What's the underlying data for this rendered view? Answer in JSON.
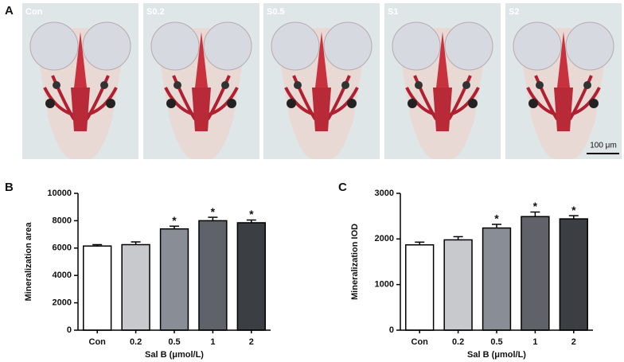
{
  "panel_a": {
    "label": "A",
    "images": [
      "Con",
      "S0.2",
      "S0.5",
      "S1",
      "S2"
    ],
    "scale_bar": "100 μm"
  },
  "chart_data": [
    {
      "type": "bar",
      "panel_label": "B",
      "y_label": "Mineralization area",
      "x_label": "Sal B (μmol/L)",
      "categories": [
        "Con",
        "0.2",
        "0.5",
        "1",
        "2"
      ],
      "values": [
        6150,
        6250,
        7400,
        8000,
        7850
      ],
      "errors": [
        100,
        200,
        200,
        250,
        200
      ],
      "significance": [
        null,
        null,
        "*",
        "*",
        "*"
      ],
      "colors": [
        "#ffffff",
        "#c8c9cd",
        "#898d95",
        "#5f6369",
        "#3b3e43"
      ],
      "ylim": [
        0,
        10000
      ],
      "yticks": [
        0,
        2000,
        4000,
        6000,
        8000,
        10000
      ]
    },
    {
      "type": "bar",
      "panel_label": "C",
      "y_label": "Mineralization IOD",
      "x_label": "Sal B (μmol/L)",
      "categories": [
        "Con",
        "0.2",
        "0.5",
        "1",
        "2"
      ],
      "values": [
        1870,
        1980,
        2240,
        2490,
        2440
      ],
      "errors": [
        60,
        70,
        80,
        100,
        70
      ],
      "significance": [
        null,
        null,
        "*",
        "*",
        "*"
      ],
      "colors": [
        "#ffffff",
        "#c8c9cd",
        "#898d95",
        "#5f6369",
        "#3b3e43"
      ],
      "ylim": [
        0,
        3000
      ],
      "yticks": [
        0,
        1000,
        2000,
        3000
      ]
    }
  ]
}
